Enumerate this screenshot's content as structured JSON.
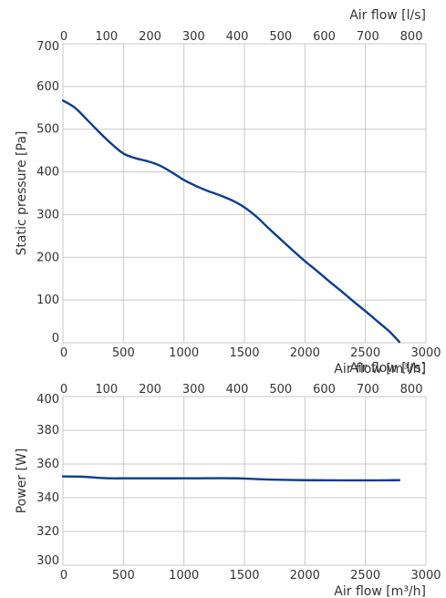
{
  "colors": {
    "line": "#0b3d91",
    "grid": "#c8c8c8",
    "text": "#333333"
  },
  "chart_data": [
    {
      "type": "line",
      "title": "",
      "xlabel": "Air flow [m³/h]",
      "ylabel": "Static pressure [Pa]",
      "x2label": "Air flow [l/s]",
      "xlim": [
        0,
        3000
      ],
      "ylim": [
        0,
        700
      ],
      "x2lim": [
        0,
        833.33
      ],
      "xticks": [
        0,
        500,
        1000,
        1500,
        2000,
        2500,
        3000
      ],
      "yticks": [
        0,
        100,
        200,
        300,
        400,
        500,
        600,
        700
      ],
      "x2ticks": [
        0,
        100,
        200,
        300,
        400,
        500,
        600,
        700,
        800
      ],
      "grid": true,
      "legend": "none",
      "series": [
        {
          "x": [
            0,
            100,
            200,
            300,
            400,
            500,
            600,
            700,
            800,
            900,
            1000,
            1100,
            1200,
            1300,
            1400,
            1500,
            1600,
            1700,
            1800,
            1900,
            2000,
            2100,
            2200,
            2300,
            2400,
            2500,
            2600,
            2700,
            2780
          ],
          "y": [
            567,
            550,
            522,
            493,
            466,
            443,
            432,
            425,
            415,
            399,
            381,
            367,
            355,
            345,
            333,
            317,
            295,
            268,
            242,
            216,
            191,
            168,
            144,
            121,
            97,
            74,
            50,
            26,
            2
          ]
        }
      ]
    },
    {
      "type": "line",
      "title": "",
      "xlabel": "Air flow [m³/h]",
      "ylabel": "Power [W]",
      "x2label": "Air flow [l/s]",
      "xlim": [
        0,
        3000
      ],
      "ylim": [
        300,
        400
      ],
      "x2lim": [
        0,
        833.33
      ],
      "xticks": [
        0,
        500,
        1000,
        1500,
        2000,
        2500,
        3000
      ],
      "yticks": [
        300,
        320,
        340,
        360,
        380,
        400
      ],
      "x2ticks": [
        0,
        100,
        200,
        300,
        400,
        500,
        600,
        700,
        800
      ],
      "grid": true,
      "legend": "none",
      "series": [
        {
          "x": [
            0,
            150,
            300,
            400,
            500,
            700,
            1000,
            1300,
            1500,
            1700,
            2000,
            2300,
            2600,
            2780
          ],
          "y": [
            352.6,
            352.5,
            351.8,
            351.5,
            351.5,
            351.5,
            351.5,
            351.6,
            351.4,
            350.8,
            350.4,
            350.3,
            350.3,
            350.4
          ]
        }
      ]
    }
  ]
}
